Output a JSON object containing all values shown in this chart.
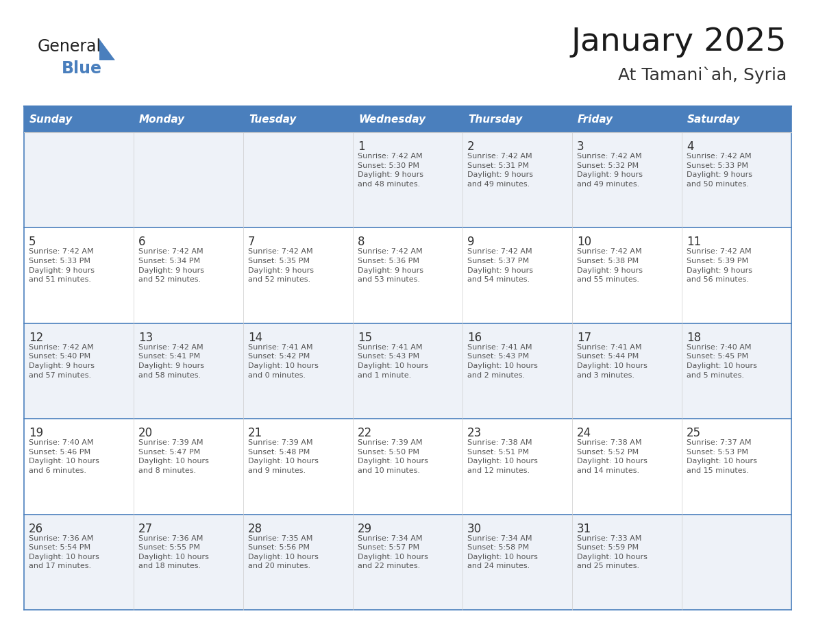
{
  "title": "January 2025",
  "subtitle": "At Tamani`ah, Syria",
  "header_bg": "#4a7fbd",
  "header_text_color": "#ffffff",
  "cell_bg_odd": "#eef2f8",
  "cell_bg_even": "#ffffff",
  "day_number_color": "#333333",
  "text_color": "#555555",
  "border_color": "#4a7fbd",
  "days_of_week": [
    "Sunday",
    "Monday",
    "Tuesday",
    "Wednesday",
    "Thursday",
    "Friday",
    "Saturday"
  ],
  "weeks": [
    [
      {
        "day": null,
        "info": ""
      },
      {
        "day": null,
        "info": ""
      },
      {
        "day": null,
        "info": ""
      },
      {
        "day": 1,
        "info": "Sunrise: 7:42 AM\nSunset: 5:30 PM\nDaylight: 9 hours\nand 48 minutes."
      },
      {
        "day": 2,
        "info": "Sunrise: 7:42 AM\nSunset: 5:31 PM\nDaylight: 9 hours\nand 49 minutes."
      },
      {
        "day": 3,
        "info": "Sunrise: 7:42 AM\nSunset: 5:32 PM\nDaylight: 9 hours\nand 49 minutes."
      },
      {
        "day": 4,
        "info": "Sunrise: 7:42 AM\nSunset: 5:33 PM\nDaylight: 9 hours\nand 50 minutes."
      }
    ],
    [
      {
        "day": 5,
        "info": "Sunrise: 7:42 AM\nSunset: 5:33 PM\nDaylight: 9 hours\nand 51 minutes."
      },
      {
        "day": 6,
        "info": "Sunrise: 7:42 AM\nSunset: 5:34 PM\nDaylight: 9 hours\nand 52 minutes."
      },
      {
        "day": 7,
        "info": "Sunrise: 7:42 AM\nSunset: 5:35 PM\nDaylight: 9 hours\nand 52 minutes."
      },
      {
        "day": 8,
        "info": "Sunrise: 7:42 AM\nSunset: 5:36 PM\nDaylight: 9 hours\nand 53 minutes."
      },
      {
        "day": 9,
        "info": "Sunrise: 7:42 AM\nSunset: 5:37 PM\nDaylight: 9 hours\nand 54 minutes."
      },
      {
        "day": 10,
        "info": "Sunrise: 7:42 AM\nSunset: 5:38 PM\nDaylight: 9 hours\nand 55 minutes."
      },
      {
        "day": 11,
        "info": "Sunrise: 7:42 AM\nSunset: 5:39 PM\nDaylight: 9 hours\nand 56 minutes."
      }
    ],
    [
      {
        "day": 12,
        "info": "Sunrise: 7:42 AM\nSunset: 5:40 PM\nDaylight: 9 hours\nand 57 minutes."
      },
      {
        "day": 13,
        "info": "Sunrise: 7:42 AM\nSunset: 5:41 PM\nDaylight: 9 hours\nand 58 minutes."
      },
      {
        "day": 14,
        "info": "Sunrise: 7:41 AM\nSunset: 5:42 PM\nDaylight: 10 hours\nand 0 minutes."
      },
      {
        "day": 15,
        "info": "Sunrise: 7:41 AM\nSunset: 5:43 PM\nDaylight: 10 hours\nand 1 minute."
      },
      {
        "day": 16,
        "info": "Sunrise: 7:41 AM\nSunset: 5:43 PM\nDaylight: 10 hours\nand 2 minutes."
      },
      {
        "day": 17,
        "info": "Sunrise: 7:41 AM\nSunset: 5:44 PM\nDaylight: 10 hours\nand 3 minutes."
      },
      {
        "day": 18,
        "info": "Sunrise: 7:40 AM\nSunset: 5:45 PM\nDaylight: 10 hours\nand 5 minutes."
      }
    ],
    [
      {
        "day": 19,
        "info": "Sunrise: 7:40 AM\nSunset: 5:46 PM\nDaylight: 10 hours\nand 6 minutes."
      },
      {
        "day": 20,
        "info": "Sunrise: 7:39 AM\nSunset: 5:47 PM\nDaylight: 10 hours\nand 8 minutes."
      },
      {
        "day": 21,
        "info": "Sunrise: 7:39 AM\nSunset: 5:48 PM\nDaylight: 10 hours\nand 9 minutes."
      },
      {
        "day": 22,
        "info": "Sunrise: 7:39 AM\nSunset: 5:50 PM\nDaylight: 10 hours\nand 10 minutes."
      },
      {
        "day": 23,
        "info": "Sunrise: 7:38 AM\nSunset: 5:51 PM\nDaylight: 10 hours\nand 12 minutes."
      },
      {
        "day": 24,
        "info": "Sunrise: 7:38 AM\nSunset: 5:52 PM\nDaylight: 10 hours\nand 14 minutes."
      },
      {
        "day": 25,
        "info": "Sunrise: 7:37 AM\nSunset: 5:53 PM\nDaylight: 10 hours\nand 15 minutes."
      }
    ],
    [
      {
        "day": 26,
        "info": "Sunrise: 7:36 AM\nSunset: 5:54 PM\nDaylight: 10 hours\nand 17 minutes."
      },
      {
        "day": 27,
        "info": "Sunrise: 7:36 AM\nSunset: 5:55 PM\nDaylight: 10 hours\nand 18 minutes."
      },
      {
        "day": 28,
        "info": "Sunrise: 7:35 AM\nSunset: 5:56 PM\nDaylight: 10 hours\nand 20 minutes."
      },
      {
        "day": 29,
        "info": "Sunrise: 7:34 AM\nSunset: 5:57 PM\nDaylight: 10 hours\nand 22 minutes."
      },
      {
        "day": 30,
        "info": "Sunrise: 7:34 AM\nSunset: 5:58 PM\nDaylight: 10 hours\nand 24 minutes."
      },
      {
        "day": 31,
        "info": "Sunrise: 7:33 AM\nSunset: 5:59 PM\nDaylight: 10 hours\nand 25 minutes."
      },
      {
        "day": null,
        "info": ""
      }
    ]
  ],
  "logo_general_color": "#222222",
  "logo_blue_color": "#4a7fbd",
  "logo_triangle_color": "#4a7fbd"
}
